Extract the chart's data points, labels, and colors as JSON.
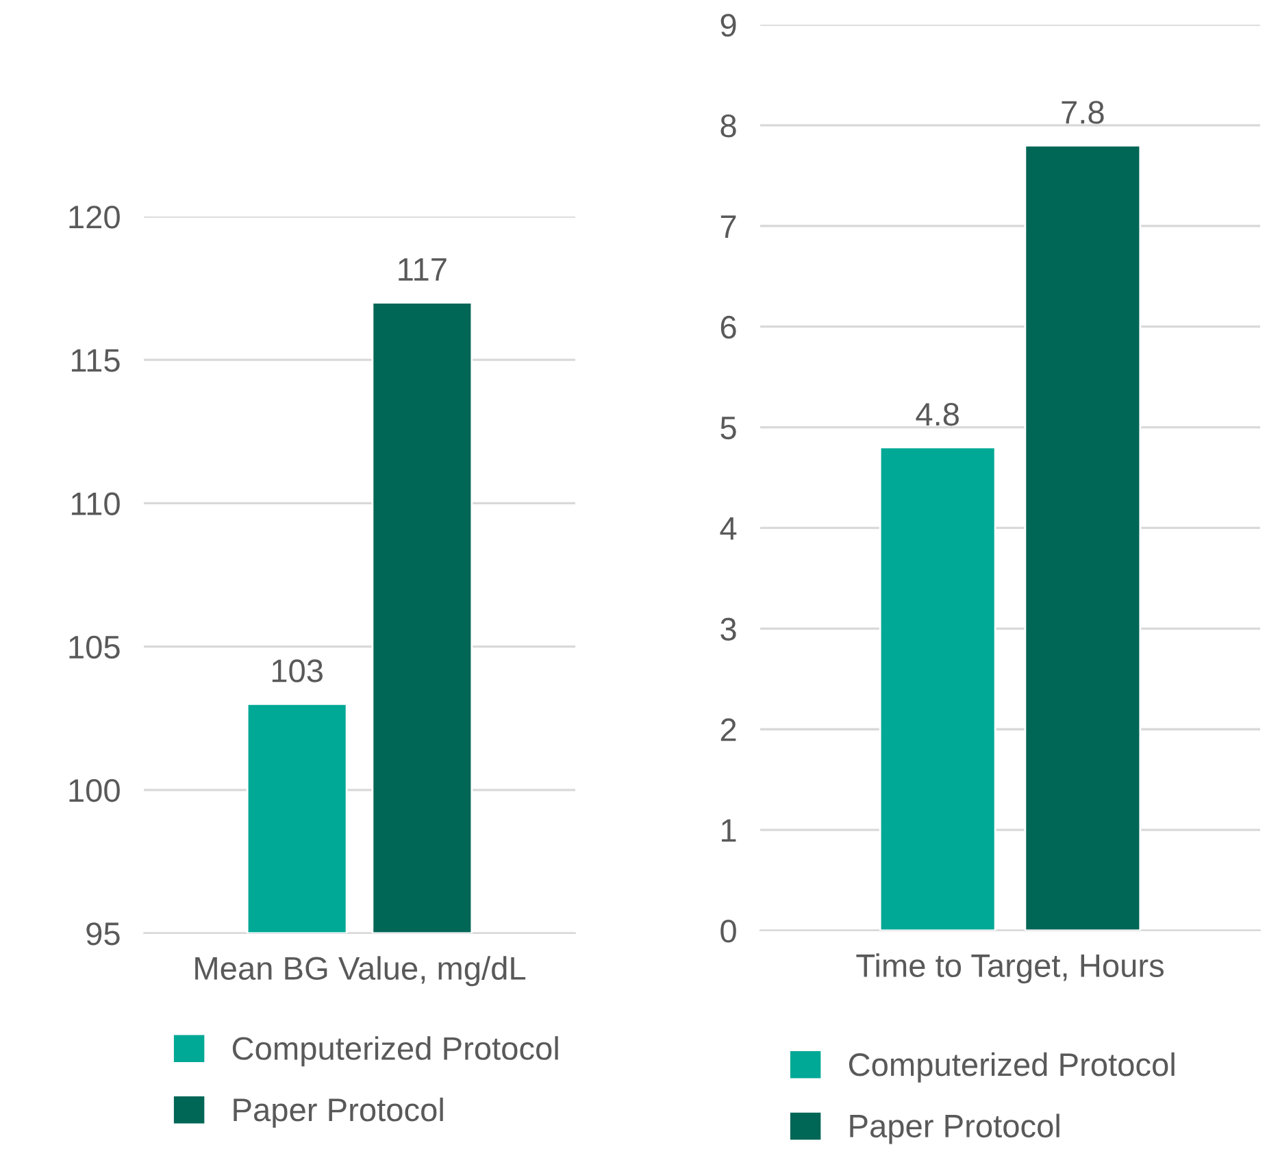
{
  "chart_data": [
    {
      "type": "bar",
      "categories": [
        "Mean BG Value, mg/dL"
      ],
      "ylim": [
        95,
        120
      ],
      "yticks": [
        95,
        100,
        105,
        110,
        115,
        120
      ],
      "grid": "y",
      "data_labels": true,
      "legend": "bottom",
      "series": [
        {
          "name": "Computerized Protocol",
          "color": "#00a896",
          "values": [
            103
          ]
        },
        {
          "name": "Paper Protocol",
          "color": "#006656",
          "values": [
            117
          ]
        }
      ]
    },
    {
      "type": "bar",
      "categories": [
        "Time to Target, Hours"
      ],
      "ylim": [
        0,
        9
      ],
      "yticks": [
        0,
        1,
        2,
        3,
        4,
        5,
        6,
        7,
        8,
        9
      ],
      "grid": "y",
      "data_labels": true,
      "legend": "bottom",
      "series": [
        {
          "name": "Computerized Protocol",
          "color": "#00a896",
          "values": [
            4.8
          ]
        },
        {
          "name": "Paper Protocol",
          "color": "#006656",
          "values": [
            7.8
          ]
        }
      ]
    }
  ]
}
